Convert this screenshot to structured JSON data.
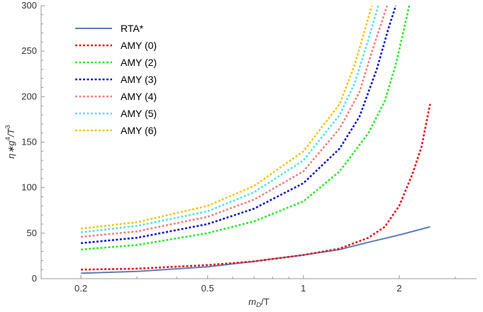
{
  "chart_data": {
    "type": "line",
    "xlabel": {
      "main": "m",
      "sub": "D",
      "rest": "/T"
    },
    "ylabel": {
      "pre": "η∗g",
      "sup1": "4",
      "mid": "/T",
      "sup2": "3"
    },
    "x_scale": "log",
    "xlim": [
      0.15,
      3.5
    ],
    "ylim": [
      0,
      300
    ],
    "x_ticks": [
      0.2,
      0.5,
      1,
      2
    ],
    "x_tick_labels": [
      "0.2",
      "0.5",
      "1",
      "2"
    ],
    "y_ticks": [
      0,
      50,
      100,
      150,
      200,
      250,
      300
    ],
    "y_tick_labels": [
      "0",
      "50",
      "100",
      "150",
      "200",
      "250",
      "300"
    ],
    "grid": false,
    "legend_position": "top-left",
    "series": [
      {
        "name": "RTA*",
        "color": "#5b7fb5",
        "style": "solid",
        "points": [
          [
            0.2,
            6
          ],
          [
            0.3,
            8
          ],
          [
            0.5,
            13
          ],
          [
            0.7,
            19
          ],
          [
            1.0,
            26
          ],
          [
            1.3,
            32
          ],
          [
            1.6,
            40
          ],
          [
            2.0,
            48
          ],
          [
            2.5,
            57
          ]
        ]
      },
      {
        "name": "AMY (0)",
        "color": "#e8111a",
        "style": "dotted",
        "points": [
          [
            0.2,
            10
          ],
          [
            0.3,
            11
          ],
          [
            0.5,
            15
          ],
          [
            0.7,
            19
          ],
          [
            1.0,
            26
          ],
          [
            1.3,
            33
          ],
          [
            1.6,
            45
          ],
          [
            1.8,
            57
          ],
          [
            2.0,
            80
          ],
          [
            2.2,
            115
          ],
          [
            2.35,
            145
          ],
          [
            2.5,
            192
          ]
        ]
      },
      {
        "name": "AMY (2)",
        "color": "#2ee82e",
        "style": "dotted",
        "points": [
          [
            0.2,
            32
          ],
          [
            0.3,
            37
          ],
          [
            0.5,
            50
          ],
          [
            0.7,
            63
          ],
          [
            1.0,
            85
          ],
          [
            1.3,
            118
          ],
          [
            1.6,
            160
          ],
          [
            1.8,
            195
          ],
          [
            1.95,
            235
          ],
          [
            2.05,
            268
          ],
          [
            2.15,
            300
          ]
        ]
      },
      {
        "name": "AMY (3)",
        "color": "#1418c8",
        "style": "dotted",
        "points": [
          [
            0.2,
            39
          ],
          [
            0.3,
            45
          ],
          [
            0.5,
            60
          ],
          [
            0.7,
            77
          ],
          [
            1.0,
            105
          ],
          [
            1.3,
            143
          ],
          [
            1.5,
            178
          ],
          [
            1.7,
            230
          ],
          [
            1.85,
            275
          ],
          [
            1.95,
            300
          ]
        ]
      },
      {
        "name": "AMY (4)",
        "color": "#f08282",
        "style": "dotted",
        "points": [
          [
            0.2,
            46
          ],
          [
            0.3,
            52
          ],
          [
            0.5,
            68
          ],
          [
            0.7,
            87
          ],
          [
            1.0,
            118
          ],
          [
            1.3,
            165
          ],
          [
            1.5,
            205
          ],
          [
            1.65,
            252
          ],
          [
            1.8,
            292
          ],
          [
            1.83,
            300
          ]
        ]
      },
      {
        "name": "AMY (5)",
        "color": "#5ae0f0",
        "style": "dotted",
        "points": [
          [
            0.2,
            51
          ],
          [
            0.3,
            58
          ],
          [
            0.5,
            74
          ],
          [
            0.7,
            95
          ],
          [
            1.0,
            130
          ],
          [
            1.3,
            180
          ],
          [
            1.45,
            215
          ],
          [
            1.6,
            263
          ],
          [
            1.72,
            300
          ]
        ]
      },
      {
        "name": "AMY (6)",
        "color": "#f5c518",
        "style": "dotted",
        "points": [
          [
            0.2,
            55
          ],
          [
            0.3,
            62
          ],
          [
            0.5,
            80
          ],
          [
            0.7,
            102
          ],
          [
            1.0,
            140
          ],
          [
            1.3,
            192
          ],
          [
            1.45,
            235
          ],
          [
            1.55,
            270
          ],
          [
            1.64,
            300
          ]
        ]
      }
    ]
  }
}
